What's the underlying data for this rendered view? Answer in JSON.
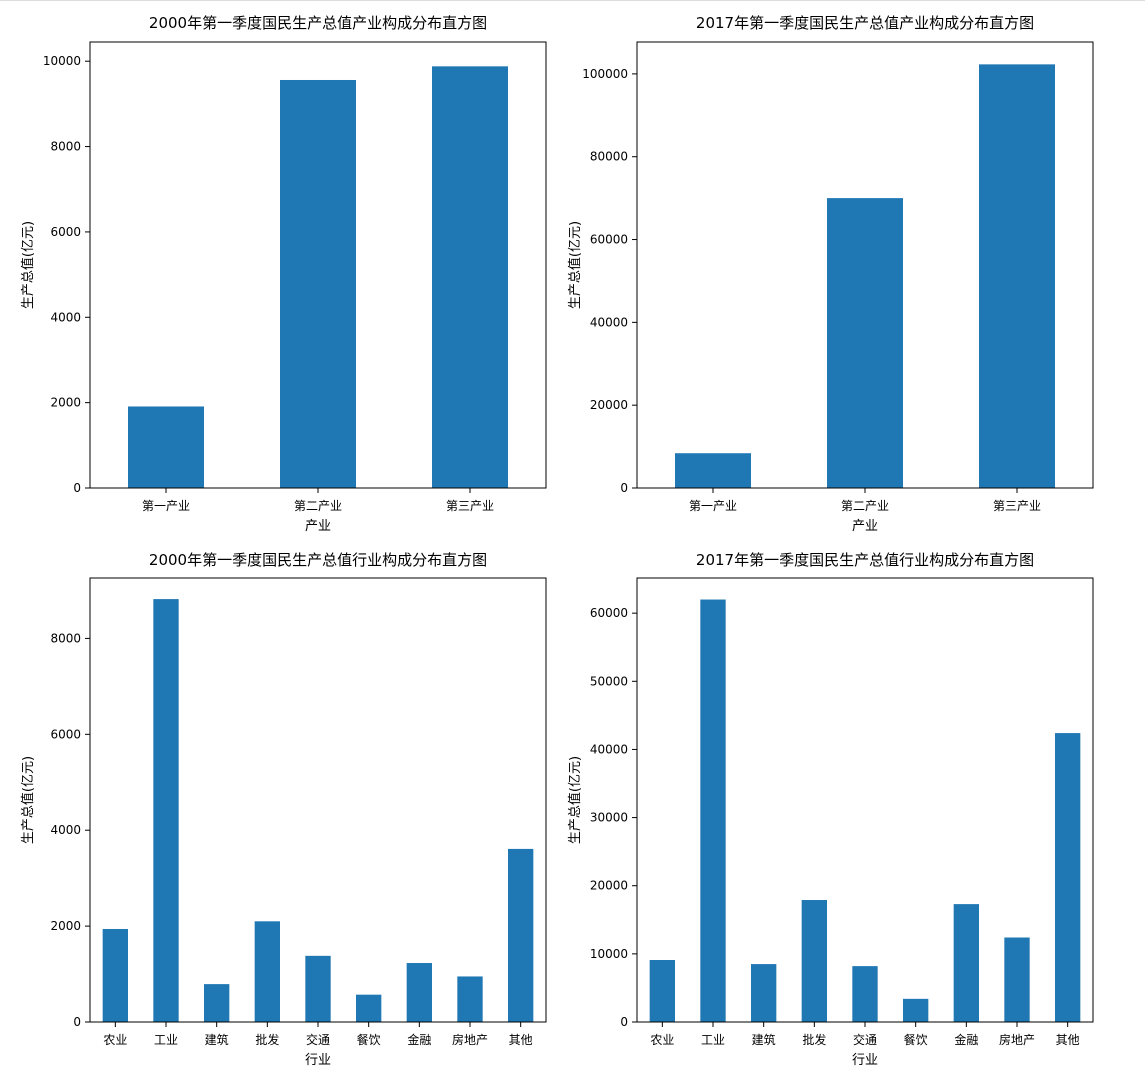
{
  "chart_data": [
    {
      "type": "bar",
      "title": "2000年第一季度国民生产总值产业构成分布直方图",
      "xlabel": "产业",
      "ylabel": "生产总值(亿元)",
      "categories": [
        "第一产业",
        "第二产业",
        "第三产业"
      ],
      "values": [
        1910,
        9560,
        9880
      ],
      "ylim": [
        0,
        10450
      ],
      "yticks": [
        "0",
        "2000",
        "4000",
        "6000",
        "8000",
        "10000"
      ],
      "color": "#1f77b4",
      "grid": false
    },
    {
      "type": "bar",
      "title": "2017年第一季度国民生产总值产业构成分布直方图",
      "xlabel": "产业",
      "ylabel": "生产总值(亿元)",
      "categories": [
        "第一产业",
        "第二产业",
        "第三产业"
      ],
      "values": [
        8400,
        70000,
        102300
      ],
      "ylim": [
        0,
        107700
      ],
      "yticks": [
        "0",
        "20000",
        "40000",
        "60000",
        "80000",
        "100000"
      ],
      "color": "#1f77b4",
      "grid": false
    },
    {
      "type": "bar",
      "title": "2000年第一季度国民生产总值行业构成分布直方图",
      "xlabel": "行业",
      "ylabel": "生产总值(亿元)",
      "categories": [
        "农业",
        "工业",
        "建筑",
        "批发",
        "交通",
        "餐饮",
        "金融",
        "房地产",
        "其他"
      ],
      "values": [
        1940,
        8820,
        790,
        2100,
        1380,
        570,
        1230,
        950,
        3610
      ],
      "ylim": [
        0,
        9260
      ],
      "yticks": [
        "0",
        "2000",
        "4000",
        "6000",
        "8000"
      ],
      "color": "#1f77b4",
      "grid": false
    },
    {
      "type": "bar",
      "title": "2017年第一季度国民生产总值行业构成分布直方图",
      "xlabel": "行业",
      "ylabel": "生产总值(亿元)",
      "categories": [
        "农业",
        "工业",
        "建筑",
        "批发",
        "交通",
        "餐饮",
        "金融",
        "房地产",
        "其他"
      ],
      "values": [
        9100,
        62000,
        8500,
        17900,
        8200,
        3400,
        17300,
        12400,
        42400
      ],
      "ylim": [
        0,
        65160
      ],
      "yticks": [
        "0",
        "10000",
        "20000",
        "30000",
        "40000",
        "50000",
        "60000"
      ],
      "color": "#1f77b4",
      "grid": false
    }
  ]
}
